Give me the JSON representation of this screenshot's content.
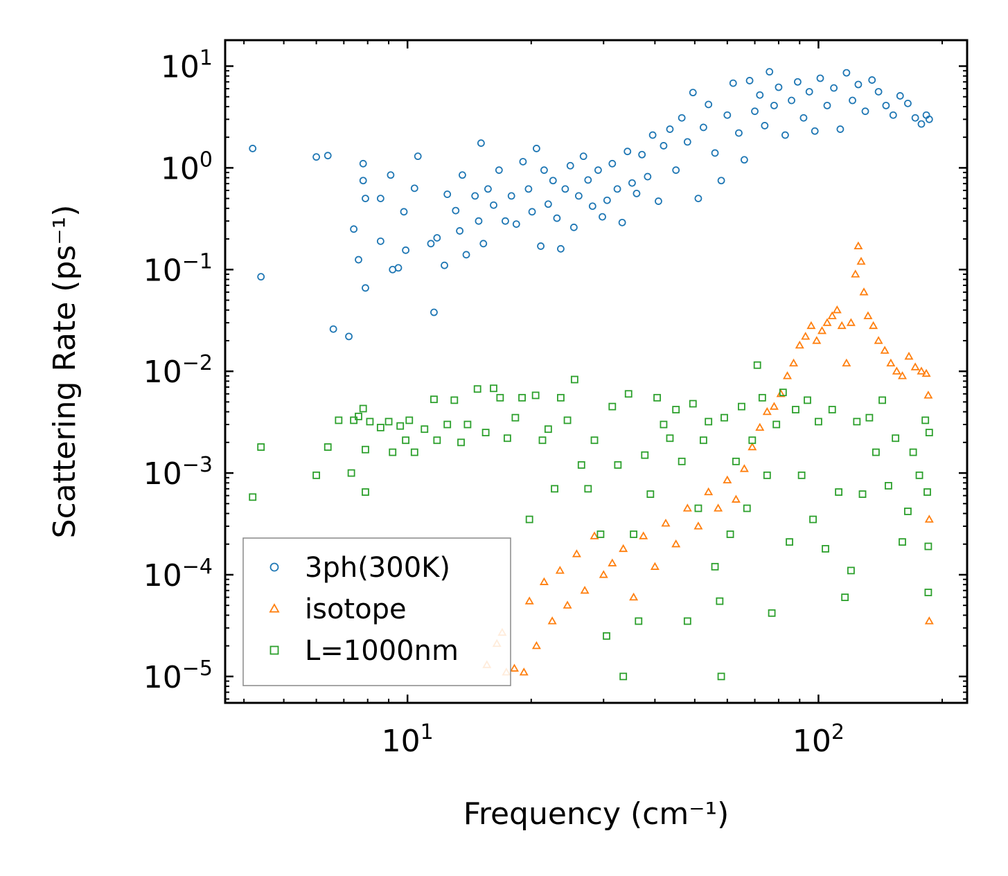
{
  "chart_data": {
    "type": "scatter",
    "xlabel": "Frequency (cm⁻¹)",
    "ylabel": "Scattering Rate (ps⁻¹)",
    "xscale": "log",
    "yscale": "log",
    "xlim": [
      3.6,
      230
    ],
    "ylim": [
      5.5e-06,
      18
    ],
    "x_ticks": [
      {
        "value": 10,
        "base": "10",
        "exp": "1"
      },
      {
        "value": 100,
        "base": "10",
        "exp": "2"
      }
    ],
    "y_ticks": [
      {
        "value": 10,
        "base": "10",
        "exp": "1"
      },
      {
        "value": 1,
        "base": "10",
        "exp": "0"
      },
      {
        "value": 0.1,
        "base": "10",
        "exp": "−1"
      },
      {
        "value": 0.01,
        "base": "10",
        "exp": "−2"
      },
      {
        "value": 0.001,
        "base": "10",
        "exp": "−3"
      },
      {
        "value": 0.0001,
        "base": "10",
        "exp": "−4"
      },
      {
        "value": 1e-05,
        "base": "10",
        "exp": "−5"
      }
    ],
    "legend_position": "lower-left",
    "series": [
      {
        "name": "3ph(300K)",
        "marker": "circle",
        "color": "#1f77b4",
        "points": [
          [
            4.2,
            1.55
          ],
          [
            4.4,
            0.085
          ],
          [
            6.0,
            1.28
          ],
          [
            6.4,
            1.32
          ],
          [
            6.6,
            0.026
          ],
          [
            7.2,
            0.022
          ],
          [
            7.4,
            0.25
          ],
          [
            7.6,
            0.125
          ],
          [
            7.8,
            1.1
          ],
          [
            7.8,
            0.75
          ],
          [
            7.9,
            0.5
          ],
          [
            7.9,
            0.066
          ],
          [
            8.6,
            0.5
          ],
          [
            8.6,
            0.19
          ],
          [
            9.1,
            0.85
          ],
          [
            9.2,
            0.1
          ],
          [
            9.5,
            0.104
          ],
          [
            9.8,
            0.37
          ],
          [
            9.9,
            0.155
          ],
          [
            10.4,
            0.63
          ],
          [
            10.6,
            1.3
          ],
          [
            11.4,
            0.18
          ],
          [
            11.6,
            0.038
          ],
          [
            11.8,
            0.205
          ],
          [
            12.3,
            0.11
          ],
          [
            12.5,
            0.55
          ],
          [
            13.1,
            0.38
          ],
          [
            13.4,
            0.24
          ],
          [
            13.6,
            0.85
          ],
          [
            13.9,
            0.14
          ],
          [
            14.6,
            0.53
          ],
          [
            14.9,
            0.3
          ],
          [
            15.1,
            1.75
          ],
          [
            15.3,
            0.18
          ],
          [
            15.7,
            0.62
          ],
          [
            16.2,
            0.43
          ],
          [
            16.7,
            0.95
          ],
          [
            17.3,
            0.3
          ],
          [
            17.9,
            0.53
          ],
          [
            18.4,
            0.28
          ],
          [
            19.1,
            1.15
          ],
          [
            19.7,
            0.62
          ],
          [
            20.1,
            0.37
          ],
          [
            20.6,
            1.55
          ],
          [
            21.1,
            0.17
          ],
          [
            21.5,
            0.95
          ],
          [
            22.0,
            0.44
          ],
          [
            22.6,
            0.75
          ],
          [
            23.1,
            0.32
          ],
          [
            23.6,
            0.16
          ],
          [
            24.2,
            0.62
          ],
          [
            24.9,
            1.05
          ],
          [
            25.4,
            0.26
          ],
          [
            26.1,
            0.53
          ],
          [
            26.8,
            1.3
          ],
          [
            27.5,
            0.76
          ],
          [
            28.2,
            0.42
          ],
          [
            29.1,
            0.95
          ],
          [
            29.8,
            0.33
          ],
          [
            30.6,
            0.48
          ],
          [
            31.5,
            1.1
          ],
          [
            32.4,
            0.62
          ],
          [
            33.3,
            0.29
          ],
          [
            34.3,
            1.45
          ],
          [
            35.2,
            0.71
          ],
          [
            36.1,
            0.56
          ],
          [
            37.2,
            1.35
          ],
          [
            38.4,
            0.82
          ],
          [
            39.5,
            2.1
          ],
          [
            40.8,
            0.47
          ],
          [
            42.0,
            1.65
          ],
          [
            43.5,
            2.4
          ],
          [
            45.0,
            0.95
          ],
          [
            46.5,
            3.1
          ],
          [
            48.0,
            1.8
          ],
          [
            49.5,
            5.5
          ],
          [
            51.0,
            0.5
          ],
          [
            52.5,
            2.5
          ],
          [
            54.0,
            4.2
          ],
          [
            56.0,
            1.4
          ],
          [
            58.0,
            0.75
          ],
          [
            60.0,
            3.3
          ],
          [
            62.0,
            6.8
          ],
          [
            64.0,
            2.2
          ],
          [
            66.0,
            1.2
          ],
          [
            68.0,
            7.2
          ],
          [
            70.0,
            3.6
          ],
          [
            72.0,
            5.2
          ],
          [
            74.0,
            2.6
          ],
          [
            76.0,
            8.8
          ],
          [
            78.0,
            4.1
          ],
          [
            80.0,
            6.2
          ],
          [
            83.0,
            2.1
          ],
          [
            86.0,
            4.6
          ],
          [
            89.0,
            7.0
          ],
          [
            92.0,
            3.1
          ],
          [
            95.0,
            5.6
          ],
          [
            98.0,
            2.3
          ],
          [
            101.0,
            7.6
          ],
          [
            105.0,
            4.1
          ],
          [
            109.0,
            6.1
          ],
          [
            113.0,
            2.4
          ],
          [
            117.0,
            8.6
          ],
          [
            121.0,
            4.6
          ],
          [
            125.0,
            6.6
          ],
          [
            130.0,
            3.6
          ],
          [
            135.0,
            7.3
          ],
          [
            140.0,
            5.6
          ],
          [
            146.0,
            4.1
          ],
          [
            152.0,
            3.3
          ],
          [
            158.0,
            5.1
          ],
          [
            165.0,
            4.3
          ],
          [
            172.0,
            3.1
          ],
          [
            178.0,
            2.7
          ],
          [
            183.0,
            3.3
          ],
          [
            186.0,
            3.0
          ]
        ]
      },
      {
        "name": "isotope",
        "marker": "triangle",
        "color": "#ff7f0e",
        "points": [
          [
            15.6,
            1.3e-05
          ],
          [
            16.5,
            2.1e-05
          ],
          [
            17.0,
            2.7e-05
          ],
          [
            17.4,
            1.1e-05
          ],
          [
            18.2,
            1.2e-05
          ],
          [
            19.2,
            1.1e-05
          ],
          [
            19.8,
            5.5e-05
          ],
          [
            20.6,
            2e-05
          ],
          [
            21.5,
            8.5e-05
          ],
          [
            22.5,
            3.5e-05
          ],
          [
            23.5,
            0.00011
          ],
          [
            24.5,
            5e-05
          ],
          [
            25.8,
            0.00016
          ],
          [
            27.0,
            7e-05
          ],
          [
            28.5,
            0.00024
          ],
          [
            30.0,
            0.0001
          ],
          [
            31.5,
            0.00013
          ],
          [
            33.5,
            0.00018
          ],
          [
            35.5,
            6e-05
          ],
          [
            37.5,
            0.00024
          ],
          [
            40.0,
            0.00012
          ],
          [
            42.5,
            0.00032
          ],
          [
            45.0,
            0.0002
          ],
          [
            48.0,
            0.00045
          ],
          [
            51.0,
            0.0003
          ],
          [
            54.0,
            0.00065
          ],
          [
            57.0,
            0.00045
          ],
          [
            60.0,
            0.00085
          ],
          [
            63.0,
            0.00055
          ],
          [
            66.0,
            0.0011
          ],
          [
            69.0,
            0.0018
          ],
          [
            72.0,
            0.0028
          ],
          [
            75.0,
            0.004
          ],
          [
            78.0,
            0.0045
          ],
          [
            81.0,
            0.006
          ],
          [
            84.0,
            0.009
          ],
          [
            87.0,
            0.012
          ],
          [
            90.0,
            0.018
          ],
          [
            93.0,
            0.022
          ],
          [
            96.0,
            0.028
          ],
          [
            99.0,
            0.02
          ],
          [
            102.0,
            0.025
          ],
          [
            105.0,
            0.03
          ],
          [
            108.0,
            0.035
          ],
          [
            111.0,
            0.04
          ],
          [
            114.0,
            0.028
          ],
          [
            117.0,
            0.012
          ],
          [
            120.0,
            0.03
          ],
          [
            123.0,
            0.09
          ],
          [
            125.0,
            0.17
          ],
          [
            127.0,
            0.12
          ],
          [
            129.0,
            0.06
          ],
          [
            132.0,
            0.035
          ],
          [
            136.0,
            0.028
          ],
          [
            140.0,
            0.02
          ],
          [
            145.0,
            0.016
          ],
          [
            150.0,
            0.012
          ],
          [
            155.0,
            0.01
          ],
          [
            160.0,
            0.009
          ],
          [
            166.0,
            0.014
          ],
          [
            172.0,
            0.011
          ],
          [
            178.0,
            0.01
          ],
          [
            183.0,
            0.0095
          ],
          [
            185.0,
            0.0058
          ],
          [
            186.0,
            0.00035
          ],
          [
            186.0,
            3.5e-05
          ]
        ]
      },
      {
        "name": "L=1000nm",
        "marker": "square",
        "color": "#2ca02c",
        "points": [
          [
            4.2,
            0.00058
          ],
          [
            4.4,
            0.0018
          ],
          [
            6.0,
            0.00095
          ],
          [
            6.4,
            0.0018
          ],
          [
            6.8,
            0.0033
          ],
          [
            7.3,
            0.001
          ],
          [
            7.4,
            0.0033
          ],
          [
            7.6,
            0.0036
          ],
          [
            7.8,
            0.0043
          ],
          [
            7.9,
            0.0017
          ],
          [
            7.9,
            0.00065
          ],
          [
            8.1,
            0.0032
          ],
          [
            8.6,
            0.0028
          ],
          [
            9.0,
            0.0032
          ],
          [
            9.2,
            0.0016
          ],
          [
            9.6,
            0.0029
          ],
          [
            9.9,
            0.0021
          ],
          [
            10.1,
            0.0033
          ],
          [
            10.4,
            0.0016
          ],
          [
            11.0,
            0.0027
          ],
          [
            11.6,
            0.0053
          ],
          [
            11.8,
            0.0021
          ],
          [
            12.5,
            0.003
          ],
          [
            13.0,
            0.0052
          ],
          [
            13.5,
            0.002
          ],
          [
            14.0,
            0.003
          ],
          [
            14.8,
            0.0067
          ],
          [
            15.5,
            0.0025
          ],
          [
            16.2,
            0.0068
          ],
          [
            16.8,
            0.0055
          ],
          [
            17.5,
            0.0022
          ],
          [
            18.3,
            0.0035
          ],
          [
            19.0,
            0.0055
          ],
          [
            19.8,
            0.00035
          ],
          [
            20.5,
            0.0058
          ],
          [
            21.3,
            0.0021
          ],
          [
            22.0,
            0.0027
          ],
          [
            22.8,
            0.0007
          ],
          [
            23.6,
            0.0055
          ],
          [
            24.5,
            0.0033
          ],
          [
            25.5,
            0.0083
          ],
          [
            26.5,
            0.0012
          ],
          [
            27.5,
            0.0007
          ],
          [
            28.5,
            0.0021
          ],
          [
            29.5,
            0.00025
          ],
          [
            30.5,
            2.5e-05
          ],
          [
            31.5,
            0.0045
          ],
          [
            32.5,
            0.0012
          ],
          [
            33.5,
            1e-05
          ],
          [
            34.5,
            0.006
          ],
          [
            35.5,
            0.00025
          ],
          [
            36.5,
            3.5e-05
          ],
          [
            37.8,
            0.0015
          ],
          [
            39.0,
            0.00062
          ],
          [
            40.5,
            0.0055
          ],
          [
            42.0,
            0.003
          ],
          [
            43.5,
            0.0022
          ],
          [
            45.0,
            0.0042
          ],
          [
            46.5,
            0.0013
          ],
          [
            48.0,
            3.5e-05
          ],
          [
            49.5,
            0.0048
          ],
          [
            51.0,
            0.00045
          ],
          [
            52.5,
            0.0021
          ],
          [
            54.0,
            0.0032
          ],
          [
            56.0,
            0.00012
          ],
          [
            57.5,
            5.5e-05
          ],
          [
            58.0,
            1e-05
          ],
          [
            59.0,
            0.0035
          ],
          [
            61.0,
            0.00025
          ],
          [
            63.0,
            0.0013
          ],
          [
            65.0,
            0.0045
          ],
          [
            67.0,
            0.00045
          ],
          [
            69.0,
            0.0021
          ],
          [
            71.0,
            0.0115
          ],
          [
            73.0,
            0.0055
          ],
          [
            75.0,
            0.00095
          ],
          [
            77.0,
            4.2e-05
          ],
          [
            79.0,
            0.003
          ],
          [
            82.0,
            0.0062
          ],
          [
            85.0,
            0.00021
          ],
          [
            88.0,
            0.0042
          ],
          [
            91.0,
            0.00095
          ],
          [
            94.0,
            0.0052
          ],
          [
            97.0,
            0.00035
          ],
          [
            100.0,
            0.0032
          ],
          [
            104.0,
            0.00018
          ],
          [
            108.0,
            0.0042
          ],
          [
            112.0,
            0.00065
          ],
          [
            116.0,
            6e-05
          ],
          [
            120.0,
            0.00011
          ],
          [
            124.0,
            0.0032
          ],
          [
            128.0,
            0.00062
          ],
          [
            133.0,
            0.0035
          ],
          [
            138.0,
            0.0016
          ],
          [
            143.0,
            0.0052
          ],
          [
            148.0,
            0.00075
          ],
          [
            154.0,
            0.0022
          ],
          [
            160.0,
            0.00021
          ],
          [
            165.0,
            0.00042
          ],
          [
            170.0,
            0.0016
          ],
          [
            176.0,
            0.00095
          ],
          [
            182.0,
            0.0033
          ],
          [
            184.0,
            0.00065
          ],
          [
            185.0,
            0.00019
          ],
          [
            185.0,
            6.7e-05
          ],
          [
            186.0,
            0.0025
          ]
        ]
      }
    ]
  }
}
